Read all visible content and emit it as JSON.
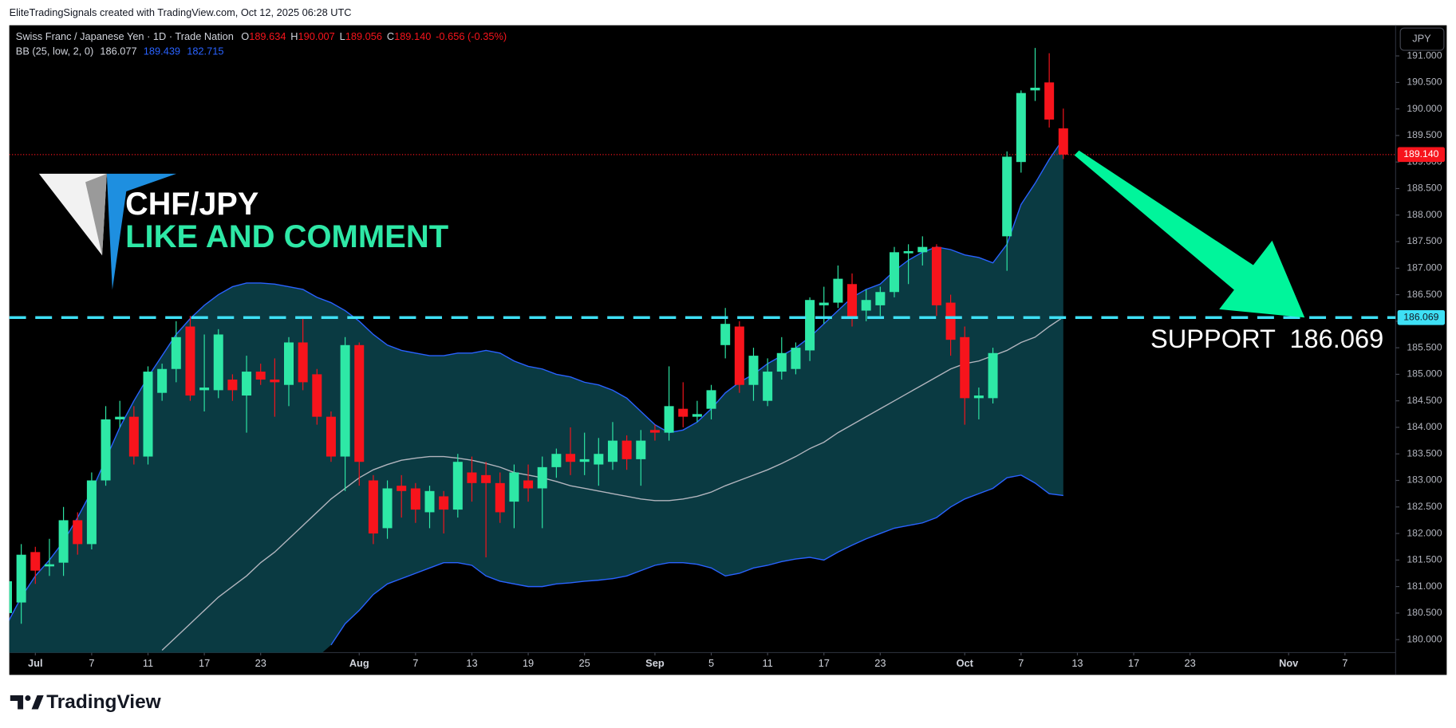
{
  "header": "EliteTradingSignals created with TradingView.com, Oct 12, 2025 06:28 UTC",
  "chart_data": {
    "type": "candlestick",
    "title": "Swiss Franc / Japanese Yen · 1D · Trade Nation",
    "ohlc_legend": [
      {
        "key": "O",
        "label": "189.634"
      },
      {
        "key": "H",
        "label": "190.007"
      },
      {
        "key": "L",
        "label": "189.056"
      },
      {
        "key": "C",
        "label": "189.140"
      }
    ],
    "change_label": "-0.656 (-0.35%)",
    "currency_button": "JPY",
    "x": [
      -2,
      -1,
      0,
      1,
      2,
      3,
      4,
      5,
      6,
      7,
      8,
      9,
      10,
      11,
      12,
      13,
      14,
      15,
      16,
      17,
      18,
      19,
      20,
      21,
      22,
      23,
      24,
      25,
      26,
      27,
      28,
      29,
      30,
      31,
      32,
      33,
      34,
      35,
      36,
      37,
      38,
      39,
      40,
      41,
      42,
      43,
      44,
      45,
      46,
      47,
      48,
      49,
      50,
      51,
      52,
      53,
      54,
      55,
      56,
      57,
      58,
      59,
      60,
      61,
      62,
      63,
      64,
      65,
      66,
      67,
      68,
      69,
      70,
      71,
      72,
      73
    ],
    "xlim": [
      -1.85,
      96.6
    ],
    "xticks": [
      {
        "value": 0,
        "label": "Jul"
      },
      {
        "value": 4,
        "label": "7"
      },
      {
        "value": 8,
        "label": "11"
      },
      {
        "value": 12,
        "label": "17"
      },
      {
        "value": 16,
        "label": "23"
      },
      {
        "value": 23,
        "label": "Aug"
      },
      {
        "value": 27,
        "label": "7"
      },
      {
        "value": 31,
        "label": "13"
      },
      {
        "value": 35,
        "label": "19"
      },
      {
        "value": 39,
        "label": "25"
      },
      {
        "value": 44,
        "label": "Sep"
      },
      {
        "value": 48,
        "label": "5"
      },
      {
        "value": 52,
        "label": "11"
      },
      {
        "value": 56,
        "label": "17"
      },
      {
        "value": 60,
        "label": "23"
      },
      {
        "value": 66,
        "label": "Oct"
      },
      {
        "value": 70,
        "label": "7"
      },
      {
        "value": 74,
        "label": "13"
      },
      {
        "value": 78,
        "label": "17"
      },
      {
        "value": 82,
        "label": "23"
      },
      {
        "value": 89,
        "label": "Nov"
      },
      {
        "value": 93,
        "label": "7"
      }
    ],
    "ylim": [
      179.755,
      191.577
    ],
    "yticks": [
      {
        "value": 180,
        "label": "180.000"
      },
      {
        "value": 180.5,
        "label": "180.500"
      },
      {
        "value": 181,
        "label": "181.000"
      },
      {
        "value": 181.5,
        "label": "181.500"
      },
      {
        "value": 182,
        "label": "182.000"
      },
      {
        "value": 182.5,
        "label": "182.500"
      },
      {
        "value": 183,
        "label": "183.000"
      },
      {
        "value": 183.5,
        "label": "183.500"
      },
      {
        "value": 184,
        "label": "184.000"
      },
      {
        "value": 184.5,
        "label": "184.500"
      },
      {
        "value": 185,
        "label": "185.000"
      },
      {
        "value": 185.5,
        "label": "185.500"
      },
      {
        "value": 186,
        "label": "186.000"
      },
      {
        "value": 186.5,
        "label": "186.500"
      },
      {
        "value": 187,
        "label": "187.000"
      },
      {
        "value": 187.5,
        "label": "187.500"
      },
      {
        "value": 188,
        "label": "188.000"
      },
      {
        "value": 188.5,
        "label": "188.500"
      },
      {
        "value": 189,
        "label": "189.000"
      },
      {
        "value": 189.5,
        "label": "189.500"
      },
      {
        "value": 190,
        "label": "190.000"
      },
      {
        "value": 190.5,
        "label": "190.500"
      },
      {
        "value": 191,
        "label": "191.000"
      }
    ],
    "grid": false,
    "series": [
      {
        "name": "CHF/JPY",
        "up_color": "#2ee8a6",
        "down_color": "#f7141c",
        "open": [
          180.5,
          180.7,
          181.65,
          181.38,
          181.45,
          182.25,
          181.8,
          183.0,
          184.15,
          184.2,
          183.45,
          184.65,
          185.1,
          185.9,
          184.7,
          184.7,
          184.9,
          184.6,
          185.05,
          184.9,
          184.8,
          185.6,
          185.0,
          184.2,
          183.45,
          185.55,
          183.0,
          182.1,
          182.9,
          182.85,
          182.4,
          182.7,
          182.45,
          183.15,
          183.1,
          182.95,
          182.6,
          183.0,
          182.85,
          183.25,
          183.5,
          183.35,
          183.3,
          183.35,
          183.75,
          183.4,
          183.95,
          183.9,
          184.35,
          184.2,
          184.35,
          185.55,
          185.9,
          184.8,
          184.5,
          185.05,
          185.1,
          185.45,
          186.3,
          186.35,
          186.7,
          186.2,
          186.3,
          186.55,
          187.28,
          187.3,
          187.4,
          186.35,
          185.7,
          184.55,
          184.55,
          187.6,
          189.0,
          190.35,
          190.5,
          189.634
        ],
        "high": [
          181.3,
          181.8,
          181.75,
          181.9,
          182.5,
          182.4,
          183.15,
          184.4,
          184.5,
          184.4,
          185.15,
          185.2,
          186.0,
          186.1,
          185.75,
          185.85,
          185.0,
          185.35,
          185.2,
          185.3,
          185.7,
          186.05,
          185.1,
          184.3,
          185.7,
          185.6,
          183.1,
          183.0,
          183.1,
          182.95,
          182.9,
          182.8,
          183.5,
          183.45,
          183.35,
          183.15,
          183.3,
          183.3,
          183.45,
          183.6,
          184.0,
          183.9,
          183.8,
          184.1,
          183.85,
          183.95,
          184.05,
          185.15,
          184.85,
          184.5,
          184.8,
          186.25,
          186.0,
          185.5,
          185.3,
          185.7,
          185.6,
          186.45,
          186.65,
          187.05,
          186.9,
          186.6,
          186.65,
          187.4,
          187.45,
          187.6,
          187.45,
          186.5,
          185.9,
          184.75,
          185.5,
          189.2,
          190.35,
          191.15,
          191.05,
          190.007
        ],
        "low": [
          180.3,
          180.3,
          181.05,
          181.2,
          181.2,
          181.6,
          181.7,
          182.9,
          184.0,
          183.3,
          183.3,
          184.5,
          184.85,
          184.5,
          184.3,
          184.55,
          184.5,
          183.9,
          184.8,
          184.2,
          184.4,
          184.7,
          184.05,
          183.35,
          182.8,
          182.9,
          181.8,
          181.9,
          182.3,
          182.2,
          182.1,
          182.0,
          182.3,
          182.6,
          181.55,
          182.2,
          182.1,
          182.6,
          182.1,
          183.05,
          183.1,
          183.1,
          182.9,
          183.2,
          183.2,
          182.9,
          183.75,
          183.75,
          184.0,
          184.1,
          184.15,
          185.3,
          184.65,
          184.5,
          184.4,
          184.9,
          185.0,
          185.25,
          185.95,
          186.25,
          185.9,
          186.0,
          186.1,
          186.45,
          186.7,
          187.05,
          186.1,
          185.35,
          184.05,
          184.15,
          184.45,
          186.95,
          188.8,
          190.15,
          189.65,
          189.056
        ],
        "close": [
          181.1,
          181.6,
          181.3,
          181.42,
          182.25,
          181.8,
          183.0,
          184.15,
          184.2,
          183.45,
          185.05,
          185.1,
          185.7,
          184.6,
          184.75,
          185.75,
          184.7,
          185.05,
          184.9,
          184.85,
          185.6,
          184.85,
          184.2,
          183.45,
          185.55,
          183.35,
          182.0,
          182.85,
          182.8,
          182.45,
          182.8,
          182.45,
          183.35,
          182.95,
          182.95,
          182.4,
          183.15,
          182.85,
          183.25,
          183.5,
          183.35,
          183.4,
          183.5,
          183.75,
          183.4,
          183.75,
          183.9,
          184.4,
          184.2,
          184.25,
          184.7,
          185.95,
          184.8,
          185.35,
          185.05,
          185.4,
          185.5,
          186.4,
          186.35,
          186.8,
          186.05,
          186.4,
          186.55,
          187.3,
          187.32,
          187.4,
          186.3,
          185.65,
          184.55,
          184.6,
          185.4,
          189.1,
          190.3,
          190.4,
          189.8,
          189.14
        ]
      }
    ],
    "bollinger": {
      "name": "BB (25, low, 2, 0)",
      "basis_color": "#b2b5be",
      "band_color": "#2962ff",
      "fill_color": "#0a3a42",
      "upper": [
        180.3,
        180.8,
        181.2,
        181.5,
        181.85,
        182.3,
        182.8,
        183.4,
        184.0,
        184.5,
        184.95,
        185.35,
        185.75,
        186.05,
        186.3,
        186.5,
        186.65,
        186.72,
        186.72,
        186.7,
        186.65,
        186.6,
        186.45,
        186.35,
        186.2,
        186.0,
        185.75,
        185.55,
        185.45,
        185.4,
        185.35,
        185.35,
        185.4,
        185.4,
        185.45,
        185.4,
        185.25,
        185.15,
        185.1,
        185.0,
        184.95,
        184.85,
        184.8,
        184.7,
        184.55,
        184.3,
        184.05,
        183.9,
        183.95,
        184.1,
        184.35,
        184.65,
        184.85,
        185.0,
        185.2,
        185.35,
        185.5,
        185.7,
        185.95,
        186.2,
        186.45,
        186.6,
        186.7,
        186.95,
        187.15,
        187.3,
        187.4,
        187.35,
        187.25,
        187.2,
        187.1,
        187.45,
        188.2,
        188.6,
        189.05,
        189.439
      ],
      "basis": [
        null,
        null,
        null,
        null,
        null,
        null,
        null,
        null,
        null,
        null,
        null,
        179.8,
        180.05,
        180.3,
        180.55,
        180.8,
        181.0,
        181.2,
        181.45,
        181.65,
        181.9,
        182.15,
        182.4,
        182.65,
        182.85,
        183.05,
        183.2,
        183.3,
        183.38,
        183.42,
        183.45,
        183.45,
        183.42,
        183.38,
        183.32,
        183.25,
        183.15,
        183.1,
        183.05,
        182.98,
        182.9,
        182.85,
        182.8,
        182.75,
        182.7,
        182.65,
        182.62,
        182.62,
        182.65,
        182.7,
        182.78,
        182.9,
        183.0,
        183.1,
        183.2,
        183.32,
        183.45,
        183.6,
        183.72,
        183.9,
        184.05,
        184.2,
        184.35,
        184.5,
        184.65,
        184.8,
        184.95,
        185.1,
        185.2,
        185.25,
        185.35,
        185.45,
        185.6,
        185.7,
        185.9,
        186.077
      ],
      "lower": [
        null,
        null,
        null,
        null,
        null,
        null,
        null,
        null,
        null,
        null,
        null,
        null,
        null,
        null,
        null,
        null,
        null,
        null,
        null,
        null,
        null,
        null,
        null,
        179.9,
        180.3,
        180.55,
        180.85,
        181.05,
        181.15,
        181.25,
        181.35,
        181.45,
        181.45,
        181.4,
        181.2,
        181.1,
        181.05,
        181.0,
        181.0,
        181.05,
        181.07,
        181.1,
        181.12,
        181.15,
        181.2,
        181.3,
        181.4,
        181.45,
        181.45,
        181.42,
        181.35,
        181.2,
        181.25,
        181.35,
        181.4,
        181.47,
        181.52,
        181.55,
        181.5,
        181.65,
        181.78,
        181.9,
        182.0,
        182.1,
        182.15,
        182.2,
        182.3,
        182.5,
        182.65,
        182.75,
        182.85,
        183.05,
        183.1,
        182.95,
        182.75,
        182.715
      ]
    },
    "last_price": {
      "value": 189.14,
      "label": "189.140",
      "color": "#f7141c"
    },
    "support": {
      "value": 186.069,
      "label": "186.069",
      "color": "#3ee0f5"
    },
    "annotations": {
      "symbol": "CHF/JPY",
      "cta": "LIKE AND COMMENT",
      "support_text": "SUPPORT  186.069"
    }
  },
  "footer": {
    "brand": "TradingView"
  }
}
